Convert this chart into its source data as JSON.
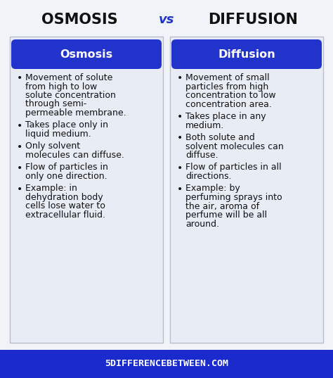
{
  "bg_color": "#f0f4f8",
  "title_left": "OSMOSIS",
  "title_vs": "vs",
  "title_right": "DIFFUSION",
  "title_color_left": "#111111",
  "title_color_vs": "#2233cc",
  "title_color_right": "#111111",
  "header_bg": "#2233cc",
  "header_text_color": "#ffffff",
  "card_bg": "#e8edf5",
  "card_border": "#bbbbcc",
  "footer_bg": "#1a2acc",
  "footer_text": "5DIFFERENCEBETWEEN.COM",
  "footer_text_color": "#ffffff",
  "osmosis_header": "Osmosis",
  "diffusion_header": "Diffusion",
  "osmosis_points": [
    "Movement of solute\nfrom high to low\nsolute concentration\nthrough semi-\npermeable membrane.",
    "Takes place only in\nliquid medium.",
    "Only solvent\nmolecules can diffuse.",
    "Flow of particles in\nonly one direction.",
    "Example: in\ndehydration body\ncells lose water to\nextracellular fluid."
  ],
  "diffusion_points": [
    "Movement of small\nparticles from high\nconcentration to low\nconcentration area.",
    "Takes place in any\nmedium.",
    "Both solute and\nsolvent molecules can\ndiffuse.",
    "Flow of particles in all\ndirections.",
    "Example: by\nperfuming sprays into\nthe air, aroma of\nperfume will be all\naround."
  ],
  "figw": 4.74,
  "figh": 5.37,
  "dpi": 100
}
